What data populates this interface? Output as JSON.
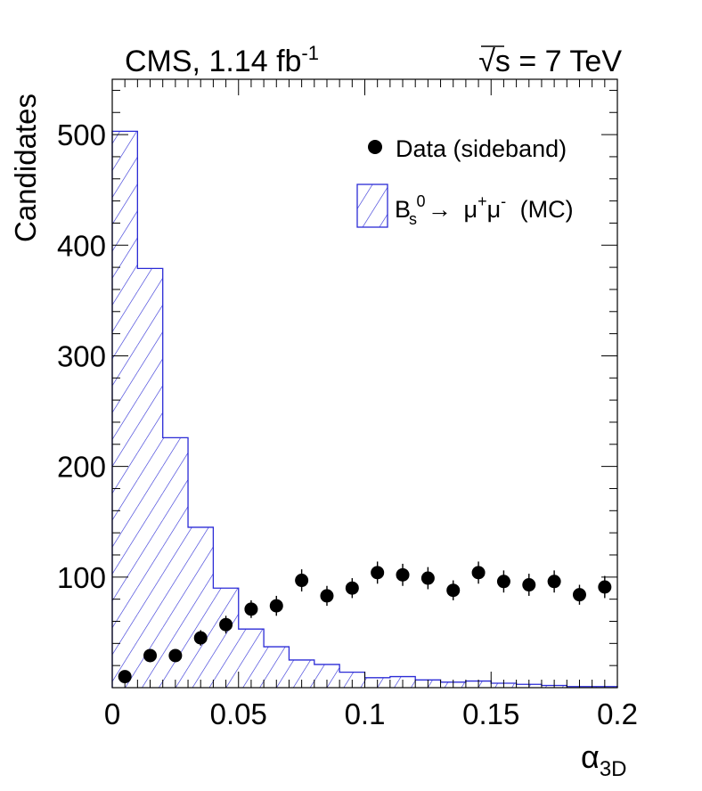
{
  "chart_data": {
    "type": "bar",
    "header_left": "CMS, 1.14 fb",
    "header_left_sup": "-1",
    "header_right_root": "√",
    "header_right": "s = 7 TeV",
    "ylabel": "Candidates",
    "xlabel": "α",
    "xlabel_sub": "3D",
    "xlim": [
      0,
      0.2
    ],
    "ylim": [
      0,
      550
    ],
    "x_ticks": [
      0,
      0.05,
      0.1,
      0.15,
      0.2
    ],
    "x_tick_labels": [
      "0",
      "0.05",
      "0.1",
      "0.15",
      "0.2"
    ],
    "y_ticks": [
      100,
      200,
      300,
      400,
      500
    ],
    "y_tick_labels": [
      "100",
      "200",
      "300",
      "400",
      "500"
    ],
    "bin_edges": [
      0,
      0.01,
      0.02,
      0.03,
      0.04,
      0.05,
      0.06,
      0.07,
      0.08,
      0.09,
      0.1,
      0.11,
      0.12,
      0.13,
      0.14,
      0.15,
      0.16,
      0.17,
      0.18,
      0.19,
      0.2
    ],
    "series": [
      {
        "name": "Data (sideband)",
        "kind": "points",
        "x": [
          0.005,
          0.015,
          0.025,
          0.035,
          0.045,
          0.055,
          0.065,
          0.075,
          0.085,
          0.095,
          0.105,
          0.115,
          0.125,
          0.135,
          0.145,
          0.155,
          0.165,
          0.175,
          0.185,
          0.195
        ],
        "values": [
          10,
          29,
          29,
          45,
          57,
          71,
          74,
          97,
          83,
          90,
          104,
          102,
          99,
          88,
          104,
          96,
          93,
          96,
          84,
          91
        ],
        "errors": [
          3,
          5,
          5,
          7,
          8,
          8,
          9,
          10,
          9,
          9,
          10,
          10,
          10,
          9,
          10,
          10,
          10,
          10,
          9,
          10
        ]
      },
      {
        "name": "(MC)",
        "legend_B": "B",
        "legend_B_sup": "0",
        "legend_B_sub": "s",
        "legend_arrow": "→",
        "legend_mu": "μ",
        "legend_mu_plus": "+",
        "legend_mu_minus": "-",
        "kind": "hatched-histogram",
        "values": [
          503,
          379,
          226,
          145,
          90,
          53,
          37,
          25,
          21,
          14,
          9,
          10,
          7,
          5,
          6,
          4,
          3,
          2,
          1,
          1
        ]
      }
    ],
    "colors": {
      "mc": "#2b2bd6",
      "data": "#000000"
    },
    "legend_position": "top-right"
  }
}
